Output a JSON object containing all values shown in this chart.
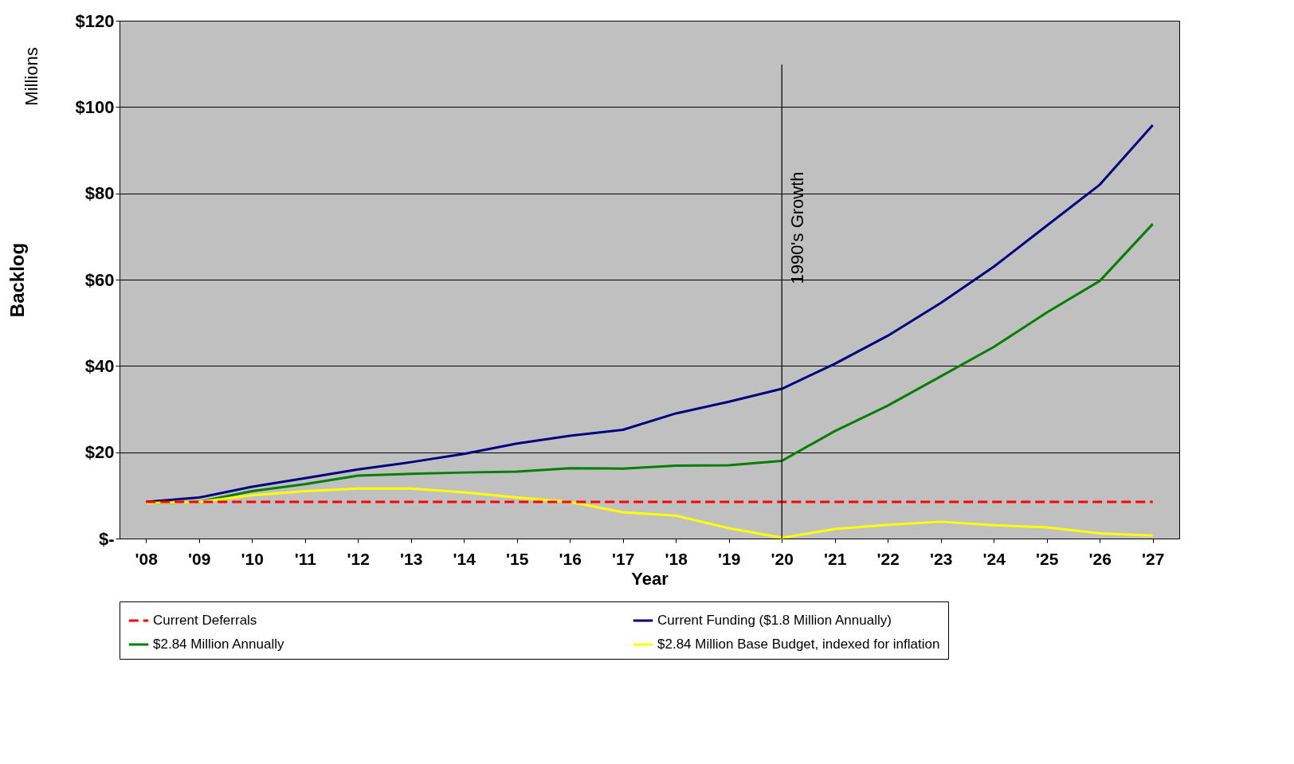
{
  "chart_data": {
    "type": "line",
    "xlabel": "Year",
    "ylabel": "Backlog",
    "annotations": [
      "Millions"
    ],
    "categories": [
      "'08",
      "'09",
      "'10",
      "'11",
      "'12",
      "'13",
      "'14",
      "'15",
      "'16",
      "'17",
      "'18",
      "'19",
      "'20",
      "'21",
      "'22",
      "'23",
      "'24",
      "'25",
      "'26",
      "'27"
    ],
    "ylim": [
      0,
      120
    ],
    "yticks": [
      {
        "value": 0,
        "label": "$-"
      },
      {
        "value": 20,
        "label": "$20"
      },
      {
        "value": 40,
        "label": "$40"
      },
      {
        "value": 60,
        "label": "$60"
      },
      {
        "value": 80,
        "label": "$80"
      },
      {
        "value": 100,
        "label": "$100"
      },
      {
        "value": 120,
        "label": "$120"
      }
    ],
    "grid": "y",
    "legend": "bottom",
    "marker": "none",
    "series": [
      {
        "name": "Current Deferrals",
        "color": "#ff0000",
        "line_style": "dashed",
        "values": [
          8.5,
          8.5,
          8.5,
          8.5,
          8.5,
          8.5,
          8.5,
          8.5,
          8.5,
          8.5,
          8.5,
          8.5,
          8.5,
          8.5,
          8.5,
          8.5,
          8.5,
          8.5,
          8.5,
          8.5
        ]
      },
      {
        "name": "Current Funding ($1.8 Million Annually)",
        "color": "#000080",
        "values": [
          8.5,
          9.5,
          12,
          14,
          16,
          17.7,
          19.6,
          22,
          23.8,
          25.2,
          29,
          31.7,
          34.7,
          40.5,
          47,
          54.6,
          63,
          72.5,
          82,
          95.8
        ]
      },
      {
        "name": "$2.84 Million Annually",
        "color": "#008000",
        "values": [
          8.2,
          8.5,
          11,
          12.6,
          14.6,
          15,
          15.3,
          15.5,
          16.3,
          16.2,
          16.9,
          17,
          18,
          24.9,
          30.8,
          37.6,
          44.4,
          52.4,
          59.7,
          72.9
        ]
      },
      {
        "name": "$2.84 Million Base Budget, indexed for inflation",
        "color": "#ffff00",
        "values": [
          8.2,
          8.5,
          10,
          11,
          11.6,
          11.6,
          10.7,
          9.5,
          8.5,
          6.1,
          5.3,
          2.4,
          0.2,
          2.2,
          3.2,
          3.9,
          3.1,
          2.6,
          1.2,
          0.7
        ]
      }
    ],
    "ref_lines": [
      {
        "axis": "x",
        "value": "'20",
        "label": "1990's Growth",
        "color": "#000000"
      }
    ]
  }
}
